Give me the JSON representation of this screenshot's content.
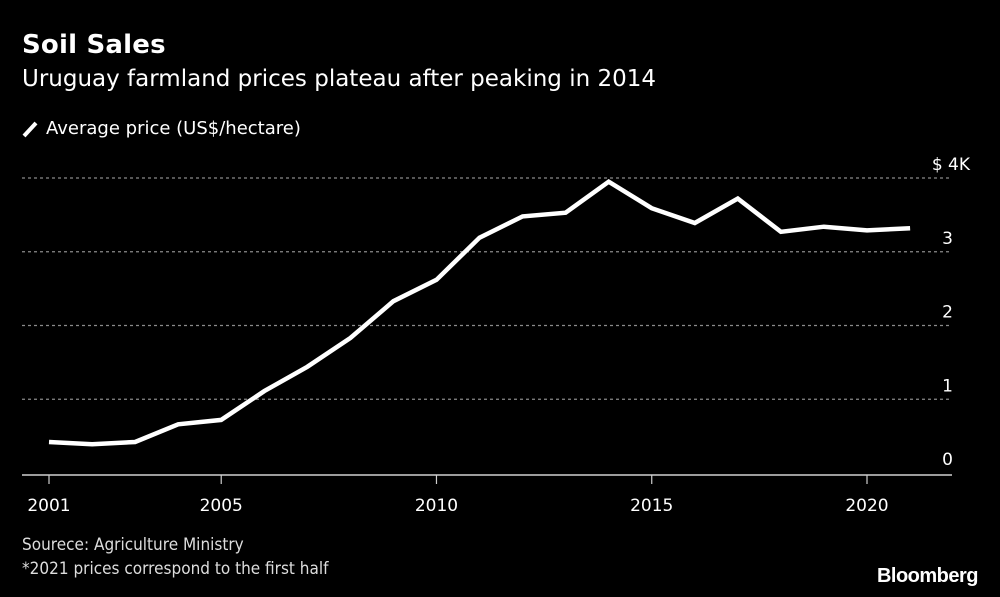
{
  "header": {
    "title": "Soil Sales",
    "subtitle": "Uruguay farmland prices plateau after peaking in 2014"
  },
  "legend": {
    "items": [
      {
        "label": "Average price (US$/hectare)",
        "color": "#ffffff",
        "icon": "line-swatch-icon"
      }
    ]
  },
  "footer": {
    "source": "Sourece: Agriculture Ministry",
    "note": "*2021 prices correspond to the first half",
    "brand": "Bloomberg"
  },
  "chart_data": {
    "type": "line",
    "title": "Soil Sales",
    "subtitle": "Uruguay farmland prices plateau after peaking in 2014",
    "xlabel": "",
    "ylabel": "Average price (US$/hectare)",
    "x": [
      2001,
      2002,
      2003,
      2004,
      2005,
      2006,
      2007,
      2008,
      2009,
      2010,
      2011,
      2012,
      2013,
      2014,
      2015,
      2016,
      2017,
      2018,
      2019,
      2020,
      2021
    ],
    "series": [
      {
        "name": "Average price (US$/hectare)",
        "color": "#ffffff",
        "values": [
          420,
          390,
          420,
          660,
          720,
          1110,
          1440,
          1830,
          2330,
          2620,
          3190,
          3480,
          3530,
          3950,
          3590,
          3390,
          3720,
          3270,
          3340,
          3290,
          3320
        ]
      }
    ],
    "xlim": [
      2000.5,
      2022
    ],
    "ylim": [
      0,
      4000
    ],
    "xticks": [
      2001,
      2005,
      2010,
      2015,
      2020
    ],
    "xtick_labels": [
      "2001",
      "2005",
      "2010",
      "2015",
      "2020"
    ],
    "yticks": [
      0,
      1000,
      2000,
      3000,
      4000
    ],
    "ytick_labels": [
      "0",
      "1",
      "2",
      "3",
      "$ 4K"
    ],
    "grid": "horizontal-dotted",
    "legend_position": "top-left",
    "background": "#000000"
  }
}
